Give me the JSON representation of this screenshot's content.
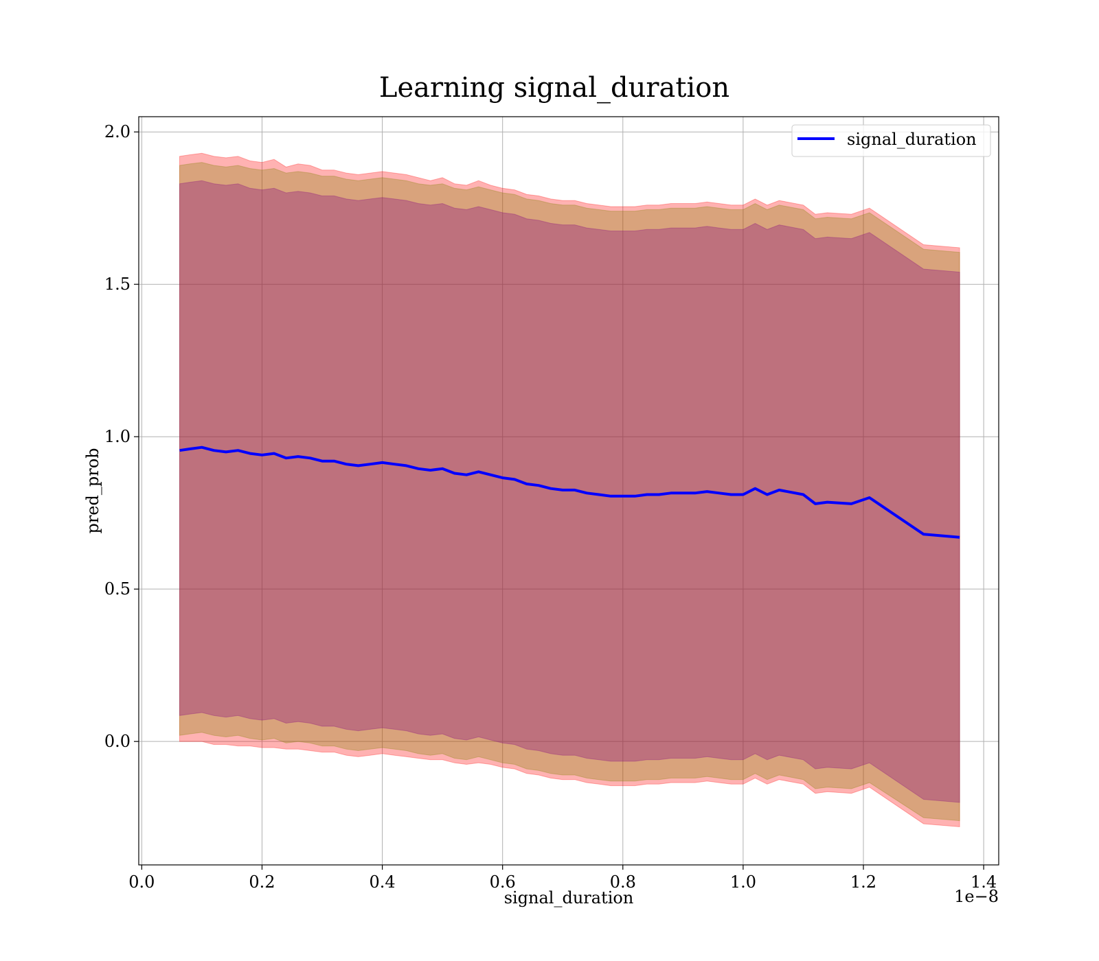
{
  "chart_data": {
    "type": "line",
    "title": "Learning signal_duration",
    "xlabel": "signal_duration",
    "ylabel": "pred_prob",
    "x_offset_label": "1e−8",
    "xlim": [
      -0.005,
      1.425
    ],
    "ylim": [
      -0.405,
      2.05
    ],
    "xticks": [
      0.0,
      0.2,
      0.4,
      0.6,
      0.8,
      1.0,
      1.2,
      1.4
    ],
    "xtick_labels": [
      "0.0",
      "0.2",
      "0.4",
      "0.6",
      "0.8",
      "1.0",
      "1.2",
      "1.4"
    ],
    "yticks": [
      0.0,
      0.5,
      1.0,
      1.5,
      2.0
    ],
    "ytick_labels": [
      "0.0",
      "0.5",
      "1.0",
      "1.5",
      "2.0"
    ],
    "grid": true,
    "legend_position": "top-right",
    "series": [
      {
        "name": "signal_duration",
        "color": "#0000ff",
        "x": [
          0.063,
          0.08,
          0.1,
          0.12,
          0.14,
          0.16,
          0.18,
          0.2,
          0.22,
          0.24,
          0.26,
          0.28,
          0.3,
          0.32,
          0.34,
          0.36,
          0.38,
          0.4,
          0.42,
          0.44,
          0.46,
          0.48,
          0.5,
          0.52,
          0.54,
          0.56,
          0.58,
          0.6,
          0.62,
          0.64,
          0.66,
          0.68,
          0.7,
          0.72,
          0.74,
          0.76,
          0.78,
          0.8,
          0.82,
          0.84,
          0.86,
          0.88,
          0.9,
          0.92,
          0.94,
          0.96,
          0.98,
          1.0,
          1.02,
          1.04,
          1.06,
          1.1,
          1.12,
          1.14,
          1.18,
          1.21,
          1.3,
          1.36
        ],
        "y": [
          0.955,
          0.96,
          0.965,
          0.955,
          0.95,
          0.955,
          0.945,
          0.94,
          0.945,
          0.93,
          0.935,
          0.93,
          0.92,
          0.92,
          0.91,
          0.905,
          0.91,
          0.915,
          0.91,
          0.905,
          0.895,
          0.89,
          0.895,
          0.88,
          0.875,
          0.885,
          0.875,
          0.865,
          0.86,
          0.845,
          0.84,
          0.83,
          0.825,
          0.825,
          0.815,
          0.81,
          0.805,
          0.805,
          0.805,
          0.81,
          0.81,
          0.815,
          0.815,
          0.815,
          0.82,
          0.815,
          0.81,
          0.81,
          0.83,
          0.81,
          0.825,
          0.81,
          0.78,
          0.785,
          0.78,
          0.8,
          0.68,
          0.67
        ]
      }
    ],
    "bands": [
      {
        "color": "#ff0000",
        "opacity": 0.3,
        "lower": [
          0.0,
          0.0,
          0.0,
          -0.01,
          -0.01,
          -0.015,
          -0.015,
          -0.02,
          -0.02,
          -0.025,
          -0.025,
          -0.03,
          -0.035,
          -0.035,
          -0.045,
          -0.05,
          -0.045,
          -0.04,
          -0.045,
          -0.05,
          -0.055,
          -0.06,
          -0.06,
          -0.07,
          -0.075,
          -0.07,
          -0.075,
          -0.085,
          -0.09,
          -0.105,
          -0.11,
          -0.12,
          -0.125,
          -0.125,
          -0.135,
          -0.14,
          -0.145,
          -0.145,
          -0.145,
          -0.14,
          -0.14,
          -0.135,
          -0.135,
          -0.135,
          -0.13,
          -0.135,
          -0.14,
          -0.14,
          -0.12,
          -0.14,
          -0.125,
          -0.14,
          -0.17,
          -0.165,
          -0.17,
          -0.15,
          -0.27,
          -0.28
        ],
        "upper": [
          1.92,
          1.925,
          1.93,
          1.92,
          1.915,
          1.92,
          1.905,
          1.9,
          1.91,
          1.885,
          1.895,
          1.89,
          1.875,
          1.875,
          1.865,
          1.86,
          1.865,
          1.87,
          1.865,
          1.86,
          1.85,
          1.84,
          1.85,
          1.83,
          1.825,
          1.84,
          1.825,
          1.815,
          1.81,
          1.795,
          1.79,
          1.78,
          1.775,
          1.775,
          1.765,
          1.76,
          1.755,
          1.755,
          1.755,
          1.76,
          1.76,
          1.765,
          1.765,
          1.765,
          1.77,
          1.765,
          1.76,
          1.76,
          1.78,
          1.76,
          1.775,
          1.76,
          1.73,
          1.735,
          1.73,
          1.75,
          1.63,
          1.62
        ]
      },
      {
        "color": "#808000",
        "opacity": 0.3,
        "lower": [
          0.02,
          0.025,
          0.03,
          0.02,
          0.015,
          0.02,
          0.01,
          0.005,
          0.01,
          -0.005,
          0.0,
          -0.005,
          -0.015,
          -0.015,
          -0.025,
          -0.03,
          -0.025,
          -0.02,
          -0.025,
          -0.03,
          -0.04,
          -0.045,
          -0.04,
          -0.055,
          -0.06,
          -0.05,
          -0.06,
          -0.07,
          -0.075,
          -0.09,
          -0.095,
          -0.105,
          -0.11,
          -0.11,
          -0.12,
          -0.125,
          -0.13,
          -0.13,
          -0.13,
          -0.125,
          -0.125,
          -0.12,
          -0.12,
          -0.12,
          -0.115,
          -0.12,
          -0.125,
          -0.125,
          -0.105,
          -0.125,
          -0.11,
          -0.125,
          -0.155,
          -0.15,
          -0.155,
          -0.135,
          -0.25,
          -0.26
        ],
        "upper": [
          1.89,
          1.895,
          1.9,
          1.89,
          1.885,
          1.89,
          1.88,
          1.875,
          1.88,
          1.865,
          1.87,
          1.865,
          1.855,
          1.855,
          1.845,
          1.84,
          1.845,
          1.85,
          1.845,
          1.84,
          1.83,
          1.825,
          1.83,
          1.815,
          1.81,
          1.82,
          1.81,
          1.8,
          1.795,
          1.78,
          1.775,
          1.765,
          1.76,
          1.76,
          1.75,
          1.745,
          1.74,
          1.74,
          1.74,
          1.745,
          1.745,
          1.75,
          1.75,
          1.75,
          1.755,
          1.75,
          1.745,
          1.745,
          1.765,
          1.745,
          1.76,
          1.745,
          1.715,
          1.72,
          1.715,
          1.735,
          1.615,
          1.605
        ]
      },
      {
        "color": "#800080",
        "opacity": 0.3,
        "lower": [
          0.085,
          0.09,
          0.095,
          0.085,
          0.08,
          0.085,
          0.075,
          0.07,
          0.075,
          0.06,
          0.065,
          0.06,
          0.05,
          0.05,
          0.04,
          0.035,
          0.04,
          0.045,
          0.04,
          0.035,
          0.025,
          0.02,
          0.025,
          0.01,
          0.005,
          0.015,
          0.005,
          -0.005,
          -0.01,
          -0.025,
          -0.03,
          -0.04,
          -0.045,
          -0.045,
          -0.055,
          -0.06,
          -0.065,
          -0.065,
          -0.065,
          -0.06,
          -0.06,
          -0.055,
          -0.055,
          -0.055,
          -0.05,
          -0.055,
          -0.06,
          -0.06,
          -0.04,
          -0.06,
          -0.045,
          -0.06,
          -0.09,
          -0.085,
          -0.09,
          -0.07,
          -0.19,
          -0.2
        ],
        "upper": [
          1.83,
          1.835,
          1.84,
          1.83,
          1.825,
          1.83,
          1.815,
          1.81,
          1.815,
          1.8,
          1.805,
          1.8,
          1.79,
          1.79,
          1.78,
          1.775,
          1.78,
          1.785,
          1.78,
          1.775,
          1.765,
          1.76,
          1.765,
          1.75,
          1.745,
          1.755,
          1.745,
          1.735,
          1.73,
          1.715,
          1.71,
          1.7,
          1.695,
          1.695,
          1.685,
          1.68,
          1.675,
          1.675,
          1.675,
          1.68,
          1.68,
          1.685,
          1.685,
          1.685,
          1.69,
          1.685,
          1.68,
          1.68,
          1.7,
          1.68,
          1.695,
          1.68,
          1.65,
          1.655,
          1.65,
          1.67,
          1.55,
          1.54
        ]
      }
    ]
  }
}
